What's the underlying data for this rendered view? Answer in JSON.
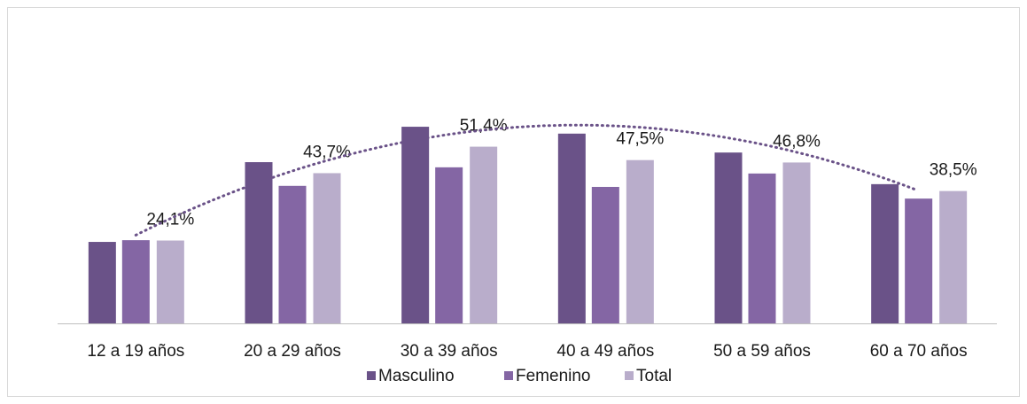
{
  "chart_data": {
    "type": "bar",
    "categories": [
      "12 a 19 años",
      "20 a 29 años",
      "30 a 39 años",
      "40 a 49 años",
      "50 a 59 años",
      "60 a 70 años"
    ],
    "series": [
      {
        "name": "Masculino",
        "color": "#6a5288",
        "values": [
          23.7,
          46.9,
          57.2,
          55.2,
          49.7,
          40.5
        ]
      },
      {
        "name": "Femenino",
        "color": "#8466a4",
        "values": [
          24.2,
          40.0,
          45.4,
          39.7,
          43.6,
          36.3
        ]
      },
      {
        "name": "Total",
        "color": "#b9adcb",
        "values": [
          24.1,
          43.7,
          51.4,
          47.5,
          46.8,
          38.5
        ],
        "value_labels": [
          "24,1%",
          "43,7%",
          "51,4%",
          "47,5%",
          "46,8%",
          "38,5%"
        ]
      }
    ],
    "legend": "bottom"
  }
}
